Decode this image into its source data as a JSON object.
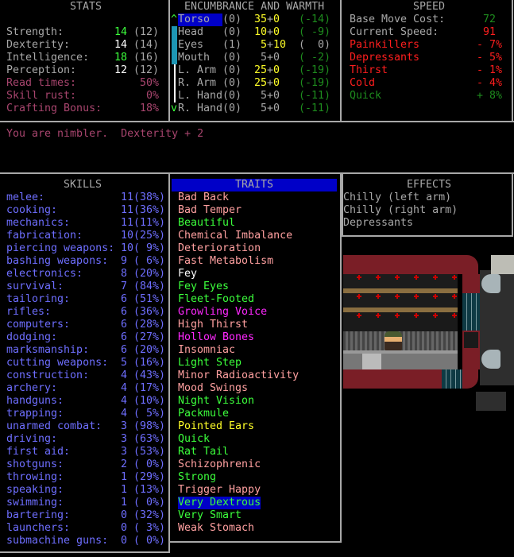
{
  "stats": {
    "title": "STATS",
    "rows": [
      {
        "label": "Strength:",
        "value": "14",
        "base": "(12)",
        "color": "#3cff3c"
      },
      {
        "label": "Dexterity:",
        "value": "14",
        "base": "(14)",
        "color": "#ffffff"
      },
      {
        "label": "Intelligence:",
        "value": "18",
        "base": "(16)",
        "color": "#3cff3c"
      },
      {
        "label": "Perception:",
        "value": "12",
        "base": "(12)",
        "color": "#ffffff"
      }
    ],
    "extras": [
      {
        "label": "Read times:",
        "value": "50%"
      },
      {
        "label": "Skill rust:",
        "value": "0%"
      },
      {
        "label": "Crafting Bonus:",
        "value": "18%"
      }
    ]
  },
  "encumbrance": {
    "title": "ENCUMBRANCE AND WARMTH",
    "scroll_up": "^",
    "scroll_down": "v",
    "rows": [
      {
        "part": "Torso",
        "layers": "(0)",
        "enc": "35",
        "plus": "+",
        "extra": "0",
        "warmth": "(-14)",
        "enc_color": "yellow",
        "warm_color": "dgreen",
        "selected": true
      },
      {
        "part": "Head",
        "layers": "(0)",
        "enc": "10",
        "plus": "+",
        "extra": "0",
        "warmth": "( -9)",
        "enc_color": "yellow",
        "warm_color": "dgreen"
      },
      {
        "part": "Eyes",
        "layers": "(1)",
        "enc": " 5",
        "plus": "+",
        "extra": "10",
        "warmth": "(  0)",
        "enc_color": "yellow",
        "warm_color": "gray"
      },
      {
        "part": "Mouth",
        "layers": "(0)",
        "enc": " 5",
        "plus": "+",
        "extra": "0",
        "warmth": "( -2)",
        "enc_color": "gray",
        "warm_color": "dgreen"
      },
      {
        "part": "L. Arm",
        "layers": "(0)",
        "enc": "25",
        "plus": "+",
        "extra": "0",
        "warmth": "(-19)",
        "enc_color": "yellow",
        "warm_color": "dgreen"
      },
      {
        "part": "R. Arm",
        "layers": "(0)",
        "enc": "25",
        "plus": "+",
        "extra": "0",
        "warmth": "(-19)",
        "enc_color": "yellow",
        "warm_color": "dgreen"
      },
      {
        "part": "L. Hand",
        "layers": "(0)",
        "enc": " 5",
        "plus": "+",
        "extra": "0",
        "warmth": "(-11)",
        "enc_color": "gray",
        "warm_color": "dgreen"
      },
      {
        "part": "R. Hand",
        "layers": "(0)",
        "enc": " 5",
        "plus": "+",
        "extra": "0",
        "warmth": "(-11)",
        "enc_color": "gray",
        "warm_color": "dgreen"
      }
    ]
  },
  "speed": {
    "title": "SPEED",
    "rows": [
      {
        "label": "Base Move Cost:",
        "value": "72",
        "label_color": "gray",
        "value_color": "dgreen"
      },
      {
        "label": "Current Speed:",
        "value": "91",
        "label_color": "gray",
        "value_color": "red"
      },
      {
        "label": "Painkillers",
        "value": "- 7%",
        "label_color": "red",
        "value_color": "red"
      },
      {
        "label": "Depressants",
        "value": "- 5%",
        "label_color": "red",
        "value_color": "red"
      },
      {
        "label": "Thirst",
        "value": "- 1%",
        "label_color": "red",
        "value_color": "red"
      },
      {
        "label": "Cold",
        "value": "- 4%",
        "label_color": "red",
        "value_color": "red"
      },
      {
        "label": "Quick",
        "value": "+ 8%",
        "label_color": "dgreen",
        "value_color": "dgreen"
      }
    ]
  },
  "message": "You are nimbler.  Dexterity + 2",
  "skills": {
    "title": "SKILLS",
    "rows": [
      {
        "name": "melee:",
        "level": "11(38%)"
      },
      {
        "name": "cooking:",
        "level": "11(36%)"
      },
      {
        "name": "mechanics:",
        "level": "11(11%)"
      },
      {
        "name": "fabrication:",
        "level": "10(25%)"
      },
      {
        "name": "piercing weapons:",
        "level": "10( 9%)"
      },
      {
        "name": "bashing weapons:",
        "level": "9 ( 6%)"
      },
      {
        "name": "electronics:",
        "level": "8 (20%)"
      },
      {
        "name": "survival:",
        "level": "7 (84%)"
      },
      {
        "name": "tailoring:",
        "level": "6 (51%)"
      },
      {
        "name": "rifles:",
        "level": "6 (36%)"
      },
      {
        "name": "computers:",
        "level": "6 (28%)"
      },
      {
        "name": "dodging:",
        "level": "6 (27%)"
      },
      {
        "name": "marksmanship:",
        "level": "6 (20%)"
      },
      {
        "name": "cutting weapons:",
        "level": "5 (16%)"
      },
      {
        "name": "construction:",
        "level": "4 (43%)"
      },
      {
        "name": "archery:",
        "level": "4 (17%)"
      },
      {
        "name": "handguns:",
        "level": "4 (10%)"
      },
      {
        "name": "trapping:",
        "level": "4 ( 5%)"
      },
      {
        "name": "unarmed combat:",
        "level": "3 (98%)"
      },
      {
        "name": "driving:",
        "level": "3 (63%)"
      },
      {
        "name": "first aid:",
        "level": "3 (53%)"
      },
      {
        "name": "shotguns:",
        "level": "2 ( 0%)"
      },
      {
        "name": "throwing:",
        "level": "1 (29%)"
      },
      {
        "name": "speaking:",
        "level": "1 (13%)"
      },
      {
        "name": "swimming:",
        "level": "1 ( 0%)"
      },
      {
        "name": "bartering:",
        "level": "0 (32%)"
      },
      {
        "name": "launchers:",
        "level": "0 ( 3%)"
      },
      {
        "name": "submachine guns:",
        "level": "0 ( 0%)"
      }
    ]
  },
  "traits": {
    "title": "TRAITS",
    "rows": [
      {
        "name": "Bad Back",
        "color": "pink"
      },
      {
        "name": "Bad Temper",
        "color": "pink"
      },
      {
        "name": "Beautiful",
        "color": "lgreen"
      },
      {
        "name": "Chemical Imbalance",
        "color": "pink"
      },
      {
        "name": "Deterioration",
        "color": "pink"
      },
      {
        "name": "Fast Metabolism",
        "color": "pink"
      },
      {
        "name": "Fey",
        "color": "white"
      },
      {
        "name": "Fey Eyes",
        "color": "lgreen"
      },
      {
        "name": "Fleet-Footed",
        "color": "lgreen"
      },
      {
        "name": "Growling Voice",
        "color": "mag"
      },
      {
        "name": "High Thirst",
        "color": "pink"
      },
      {
        "name": "Hollow Bones",
        "color": "mag"
      },
      {
        "name": "Insomniac",
        "color": "pink"
      },
      {
        "name": "Light Step",
        "color": "lgreen"
      },
      {
        "name": "Minor Radioactivity",
        "color": "pink"
      },
      {
        "name": "Mood Swings",
        "color": "pink"
      },
      {
        "name": "Night Vision",
        "color": "lgreen"
      },
      {
        "name": "Packmule",
        "color": "lgreen"
      },
      {
        "name": "Pointed Ears",
        "color": "yellow"
      },
      {
        "name": "Quick",
        "color": "lgreen"
      },
      {
        "name": "Rat Tail",
        "color": "lgreen"
      },
      {
        "name": "Schizophrenic",
        "color": "pink"
      },
      {
        "name": "Strong",
        "color": "lgreen"
      },
      {
        "name": "Trigger Happy",
        "color": "pink"
      },
      {
        "name": "Very Dextrous",
        "color": "lgreen",
        "selected": true
      },
      {
        "name": "Very Smart",
        "color": "lgreen"
      },
      {
        "name": "Weak Stomach",
        "color": "pink"
      }
    ]
  },
  "effects": {
    "title": "EFFECTS",
    "rows": [
      "Chilly (left arm)",
      "Chilly (right arm)",
      "Depressants"
    ]
  },
  "colors": {
    "border": "#a8a8a8",
    "selection": "#0000c8",
    "scrollbar": "#1e96b4"
  }
}
